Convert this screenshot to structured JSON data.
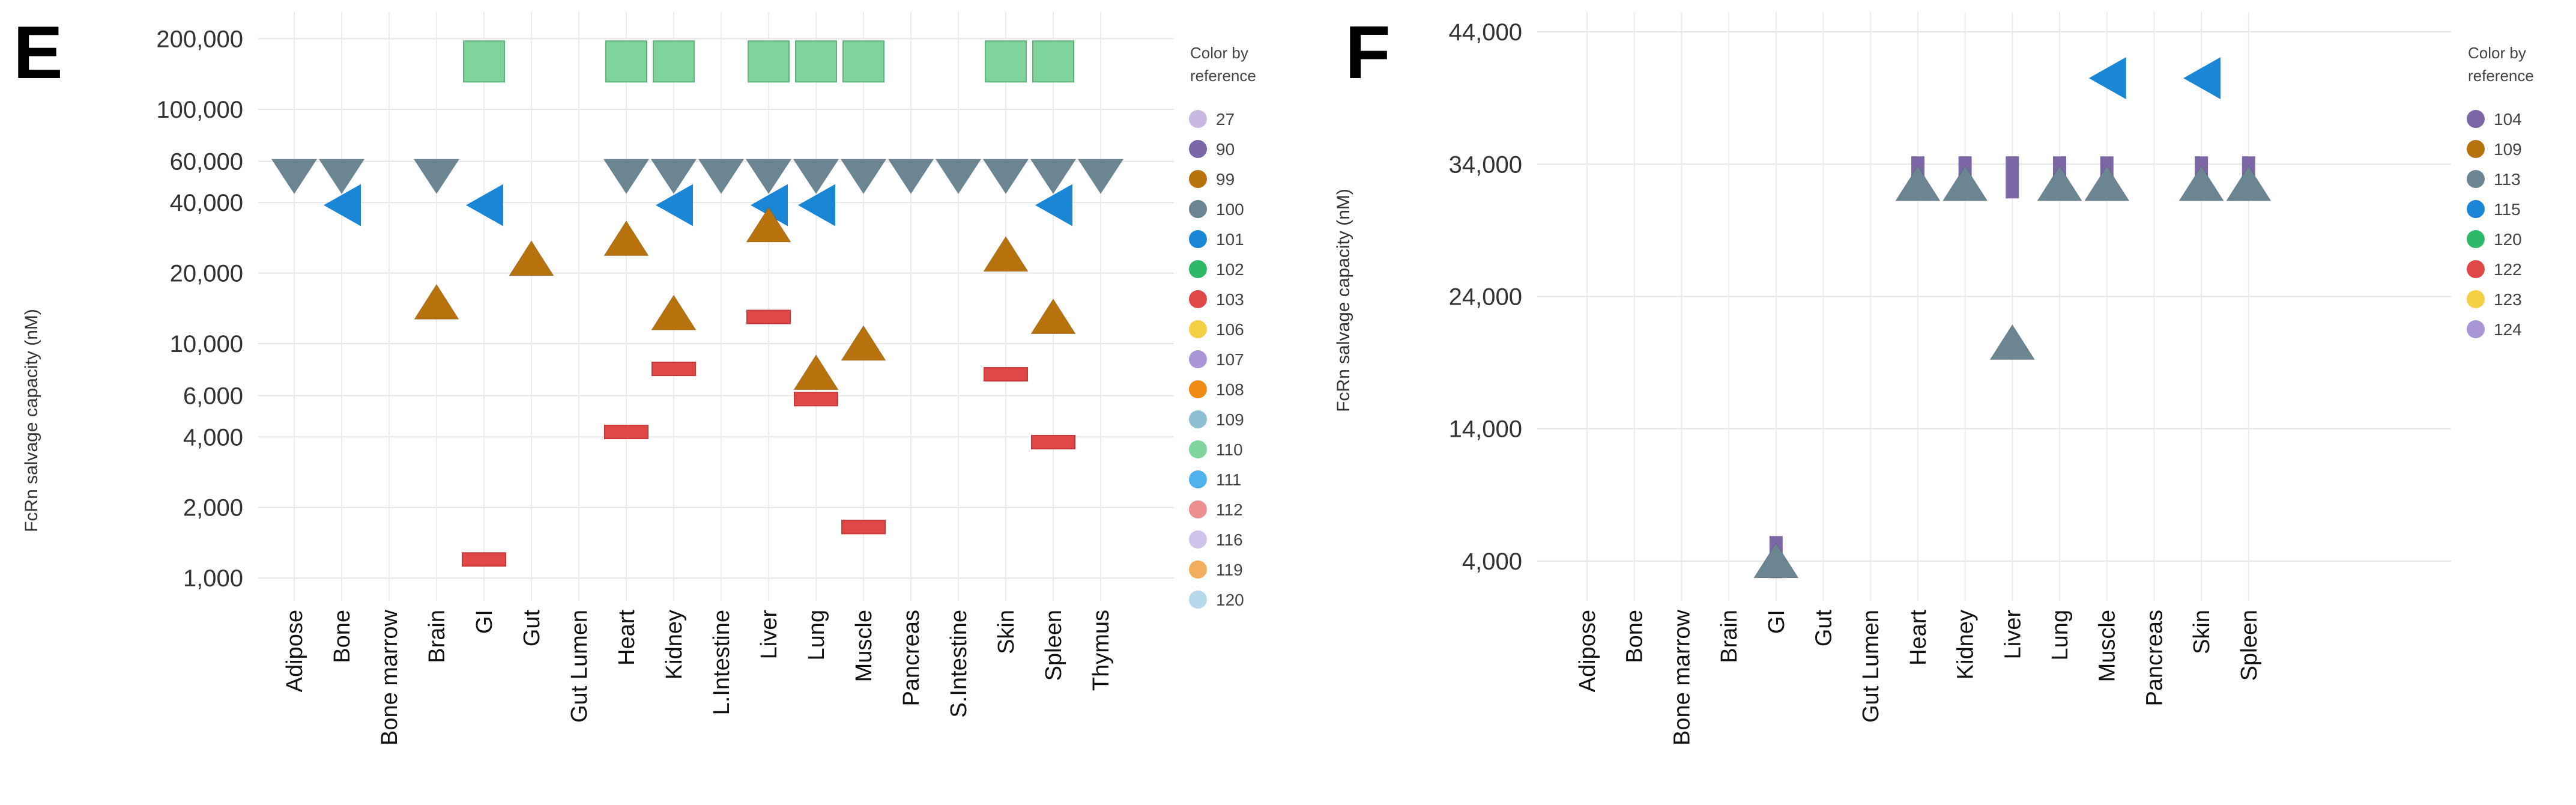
{
  "colors": {
    "27": "#c7b8e4",
    "90": "#7b67a6",
    "99": "#b7720e",
    "100": "#6c8592",
    "101": "#1a86d6",
    "102": "#2db968",
    "103": "#e04848",
    "106": "#f4cf44",
    "107": "#a896d6",
    "108": "#f08a12",
    "109": "#8fbfd3",
    "110": "#7fd49b",
    "111": "#50b2ec",
    "112": "#ee8e8e",
    "116": "#cfc2ec",
    "119": "#f2ad5d",
    "120": "#b5d8ea",
    "104": "#7b67a6",
    "113": "#6c8592",
    "115": "#1a86d6",
    "122": "#e04848",
    "123": "#f4cf44",
    "124": "#a896d6",
    "F109": "#b7720e",
    "F120": "#2db968"
  },
  "chart_data": [
    {
      "panel": "E",
      "type": "scatter",
      "yscale": "log",
      "ylabel": "FcRn salvage capacity (nM)",
      "ylim": [
        800,
        260000
      ],
      "yticks": [
        1000,
        2000,
        4000,
        6000,
        10000,
        20000,
        40000,
        60000,
        100000,
        200000
      ],
      "ytick_labels": [
        "1,000",
        "2,000",
        "4,000",
        "6,000",
        "10,000",
        "20,000",
        "40,000",
        "60,000",
        "100,000",
        "200,000"
      ],
      "categories": [
        "Adipose",
        "Bone",
        "Bone marrow",
        "Brain",
        "GI",
        "Gut",
        "Gut Lumen",
        "Heart",
        "Kidney",
        "L.Intestine",
        "Liver",
        "Lung",
        "Muscle",
        "Pancreas",
        "S.Intestine",
        "Skin",
        "Spleen",
        "Thymus"
      ],
      "legend_title": "Color by\nreference",
      "legend_title_lines": [
        "Color by",
        "reference"
      ],
      "legend": [
        "27",
        "90",
        "99",
        "100",
        "101",
        "102",
        "103",
        "106",
        "107",
        "108",
        "109",
        "110",
        "111",
        "112",
        "116",
        "119",
        "120"
      ],
      "series": [
        {
          "reference": "110",
          "marker": "square",
          "points": [
            {
              "x": "GI",
              "y": 160000
            },
            {
              "x": "Heart",
              "y": 160000
            },
            {
              "x": "Kidney",
              "y": 160000
            },
            {
              "x": "Liver",
              "y": 160000
            },
            {
              "x": "Lung",
              "y": 160000
            },
            {
              "x": "Muscle",
              "y": 160000
            },
            {
              "x": "Skin",
              "y": 160000
            },
            {
              "x": "Spleen",
              "y": 160000
            }
          ]
        },
        {
          "reference": "100",
          "marker": "triangle-down",
          "points": [
            {
              "x": "Adipose",
              "y": 52000
            },
            {
              "x": "Bone",
              "y": 52000
            },
            {
              "x": "Brain",
              "y": 52000
            },
            {
              "x": "Heart",
              "y": 52000
            },
            {
              "x": "Kidney",
              "y": 52000
            },
            {
              "x": "L.Intestine",
              "y": 52000
            },
            {
              "x": "Liver",
              "y": 52000
            },
            {
              "x": "Lung",
              "y": 52000
            },
            {
              "x": "Muscle",
              "y": 52000
            },
            {
              "x": "Pancreas",
              "y": 52000
            },
            {
              "x": "S.Intestine",
              "y": 52000
            },
            {
              "x": "Skin",
              "y": 52000
            },
            {
              "x": "Spleen",
              "y": 52000
            },
            {
              "x": "Thymus",
              "y": 52000
            }
          ]
        },
        {
          "reference": "101",
          "marker": "triangle-left",
          "points": [
            {
              "x": "Bone",
              "y": 39000
            },
            {
              "x": "GI",
              "y": 39000
            },
            {
              "x": "Kidney",
              "y": 39000
            },
            {
              "x": "Liver",
              "y": 39000
            },
            {
              "x": "Lung",
              "y": 39000
            },
            {
              "x": "Spleen",
              "y": 39000
            }
          ]
        },
        {
          "reference": "99",
          "marker": "triangle-up",
          "points": [
            {
              "x": "Brain",
              "y": 15000
            },
            {
              "x": "Gut",
              "y": 23000
            },
            {
              "x": "Heart",
              "y": 28000
            },
            {
              "x": "Kidney",
              "y": 13500
            },
            {
              "x": "Liver",
              "y": 32000
            },
            {
              "x": "Lung",
              "y": 7500
            },
            {
              "x": "Muscle",
              "y": 10000
            },
            {
              "x": "Skin",
              "y": 24000
            },
            {
              "x": "Spleen",
              "y": 13000
            }
          ]
        },
        {
          "reference": "103",
          "marker": "dash",
          "points": [
            {
              "x": "GI",
              "y": 1200
            },
            {
              "x": "Heart",
              "y": 4200
            },
            {
              "x": "Kidney",
              "y": 7800
            },
            {
              "x": "Liver",
              "y": 13000
            },
            {
              "x": "Lung",
              "y": 5800
            },
            {
              "x": "Muscle",
              "y": 1650
            },
            {
              "x": "Skin",
              "y": 7400
            },
            {
              "x": "Spleen",
              "y": 3800
            }
          ]
        }
      ]
    },
    {
      "panel": "F",
      "type": "scatter",
      "yscale": "linear",
      "ylabel": "FcRn salvage capacity (nM)",
      "ylim": [
        1000,
        45500
      ],
      "yticks": [
        4000,
        14000,
        24000,
        34000,
        44000
      ],
      "ytick_labels": [
        "4,000",
        "14,000",
        "24,000",
        "34,000",
        "44,000"
      ],
      "categories": [
        "Adipose",
        "Bone",
        "Bone marrow",
        "Brain",
        "GI",
        "Gut",
        "Gut Lumen",
        "Heart",
        "Kidney",
        "Liver",
        "Lung",
        "Muscle",
        "Pancreas",
        "Skin",
        "Spleen"
      ],
      "legend_title": "Color by\nreference",
      "legend_title_lines": [
        "Color by",
        "reference"
      ],
      "legend": [
        "104",
        "109",
        "113",
        "115",
        "120",
        "122",
        "123",
        "124"
      ],
      "series": [
        {
          "reference": "104",
          "marker": "dash-vertical",
          "points": [
            {
              "x": "GI",
              "y": 4300
            },
            {
              "x": "Heart",
              "y": 33000
            },
            {
              "x": "Kidney",
              "y": 33000
            },
            {
              "x": "Liver",
              "y": 33000
            },
            {
              "x": "Lung",
              "y": 33000
            },
            {
              "x": "Muscle",
              "y": 33000
            },
            {
              "x": "Skin",
              "y": 33000
            },
            {
              "x": "Spleen",
              "y": 33000
            }
          ]
        },
        {
          "reference": "113",
          "marker": "triangle-up",
          "points": [
            {
              "x": "GI",
              "y": 4000
            },
            {
              "x": "Heart",
              "y": 32500
            },
            {
              "x": "Kidney",
              "y": 32500
            },
            {
              "x": "Liver",
              "y": 20500
            },
            {
              "x": "Lung",
              "y": 32500
            },
            {
              "x": "Muscle",
              "y": 32500
            },
            {
              "x": "Skin",
              "y": 32500
            },
            {
              "x": "Spleen",
              "y": 32500
            }
          ]
        },
        {
          "reference": "115",
          "marker": "triangle-left",
          "points": [
            {
              "x": "Muscle",
              "y": 40500
            },
            {
              "x": "Skin",
              "y": 40500
            }
          ]
        }
      ]
    }
  ]
}
